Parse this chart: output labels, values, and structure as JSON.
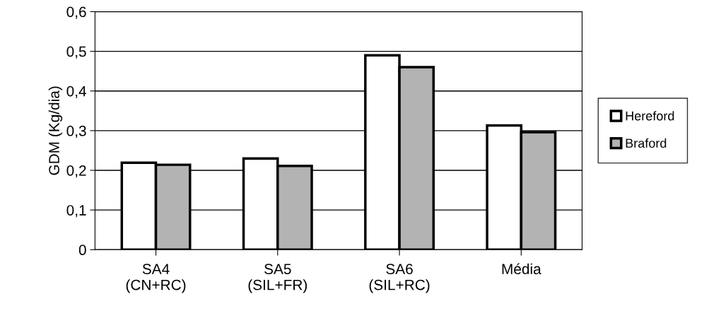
{
  "chart_data": {
    "type": "bar",
    "ylabel": "GDM (Kg/dia)",
    "categories": [
      "SA4\n(CN+RC)",
      "SA5\n(SIL+FR)",
      "SA6\n(SIL+RC)",
      "Média"
    ],
    "series": [
      {
        "name": "Hereford",
        "color": "#ffffff",
        "values": [
          0.219,
          0.23,
          0.49,
          0.313
        ]
      },
      {
        "name": "Braford",
        "color": "#b3b3b3",
        "values": [
          0.214,
          0.211,
          0.46,
          0.296
        ]
      }
    ],
    "ylim": [
      0,
      0.6
    ],
    "yticks": [
      {
        "value": 0,
        "label": "0"
      },
      {
        "value": 0.1,
        "label": "0,1"
      },
      {
        "value": 0.2,
        "label": "0,2"
      },
      {
        "value": 0.3,
        "label": "0,3"
      },
      {
        "value": 0.4,
        "label": "0,4"
      },
      {
        "value": 0.5,
        "label": "0,5"
      },
      {
        "value": 0.6,
        "label": "0,6"
      }
    ],
    "grid": "y",
    "legend": "right"
  }
}
